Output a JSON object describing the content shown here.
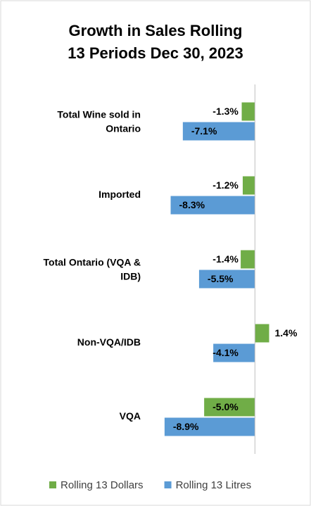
{
  "chart_data": {
    "type": "hbar",
    "title": "Growth in Sales Rolling 13 Periods Dec 30, 2023",
    "categories": [
      "Total Wine sold in Ontario",
      "Imported",
      "Total Ontario (VQA & IDB)",
      "Non-VQA/IDB",
      "VQA"
    ],
    "series": [
      {
        "name": "Rolling 13 Dollars",
        "color": "#70ad47",
        "values": [
          -1.3,
          -1.2,
          -1.4,
          1.4,
          -5.0
        ],
        "value_labels": [
          "-1.3%",
          "-1.2%",
          "-1.4%",
          "1.4%",
          "-5.0%"
        ]
      },
      {
        "name": "Rolling 13 Litres",
        "color": "#5b9bd5",
        "values": [
          -7.1,
          -8.3,
          -5.5,
          -4.1,
          -8.9
        ],
        "value_labels": [
          "-7.1%",
          "-8.3%",
          "-5.5%",
          "-4.1%",
          "-8.9%"
        ]
      }
    ],
    "xlim": [
      -10,
      4
    ],
    "legend": "bottom"
  }
}
